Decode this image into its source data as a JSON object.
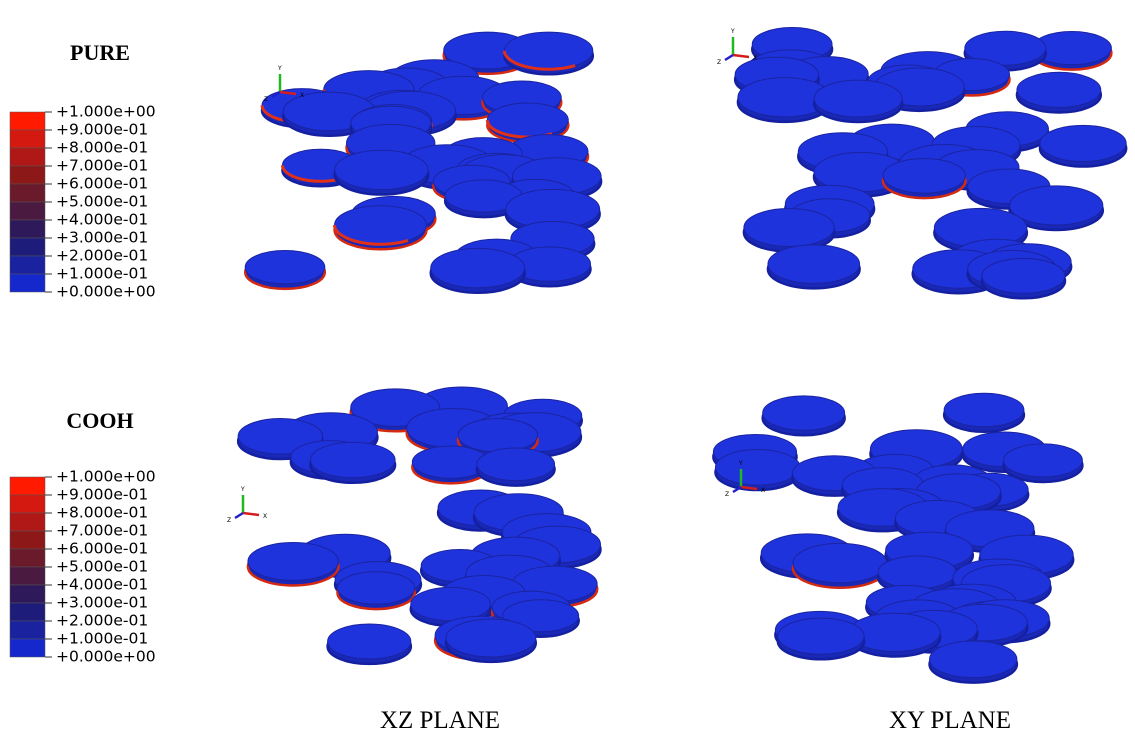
{
  "panels": [
    {
      "label": "PURE",
      "legend": [
        "+1.000e+00",
        "+9.000e-01",
        "+8.000e-01",
        "+7.000e-01",
        "+6.000e-01",
        "+5.000e-01",
        "+4.000e-01",
        "+3.000e-01",
        "+2.000e-01",
        "+1.000e-01",
        "+0.000e+00"
      ]
    },
    {
      "label": "COOH",
      "legend": [
        "+1.000e+00",
        "+9.000e-01",
        "+8.000e-01",
        "+7.000e-01",
        "+6.000e-01",
        "+5.000e-01",
        "+4.000e-01",
        "+3.000e-01",
        "+2.000e-01",
        "+1.000e-01",
        "+0.000e+00"
      ]
    }
  ],
  "columns": [
    "XZ PLANE",
    "XY PLANE"
  ],
  "triad": [
    "Y",
    "Z",
    "X"
  ]
}
